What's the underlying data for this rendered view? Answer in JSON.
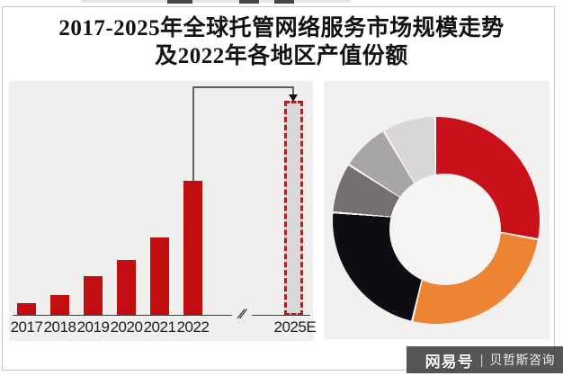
{
  "title": {
    "line1": "2017-2025年全球托管网络服务市场规模走势",
    "line2": "及2022年各地区产值份额"
  },
  "watermark": {
    "brand": "网易号",
    "divider": "|",
    "source": "贝哲斯咨询"
  },
  "colors": {
    "bar_red": "#c20d11",
    "forecast_fill": "#d9d9d9",
    "forecast_border": "#a3242a",
    "panel_bg": "#f0efed",
    "watermark_bg": "#3e3e3e"
  },
  "chart_data": [
    {
      "type": "bar",
      "title": "2017-2025年全球托管网络服务市场规模走势",
      "categories": [
        "2017",
        "2018",
        "2019",
        "2020",
        "2021",
        "2022",
        "2025E"
      ],
      "values_relative_2022_100": [
        9,
        15,
        29,
        41,
        58,
        100,
        159
      ],
      "unit": "relative market size (no numeric axis labels shown in image)",
      "axis_break_symbol": "∕∕",
      "forecast_index": 6,
      "notes": "Steadily rising red bars 2017-2022; axis break before 2025E which is a taller gray bar with dashed red outline; black elbow arrow points from 2022 bar top to 2025E bar top.",
      "colors": {
        "bar": "#c20d11",
        "forecast_fill": "#d9d9d9",
        "forecast_border": "#a3242a"
      }
    },
    {
      "type": "pie",
      "title": "2022年各地区产值份额",
      "donut_hole_ratio": 0.54,
      "separator_color": "#f7f3ec",
      "legend": "none shown",
      "segments": [
        {
          "name": "segment-red",
          "percent": 28.1,
          "color": "#c9111b"
        },
        {
          "name": "segment-orange",
          "percent": 25.8,
          "color": "#ed8434"
        },
        {
          "name": "segment-black",
          "percent": 22.5,
          "color": "#0d0d13"
        },
        {
          "name": "segment-dark-gray",
          "percent": 7.8,
          "color": "#747071"
        },
        {
          "name": "segment-gray",
          "percent": 7.5,
          "color": "#a8a5a5"
        },
        {
          "name": "segment-light-gray",
          "percent": 8.3,
          "color": "#d8d6d6"
        }
      ],
      "notes": "Donut starts at 12 o'clock going clockwise: red, orange, black, dark gray, gray, light gray. No data labels shown."
    }
  ]
}
